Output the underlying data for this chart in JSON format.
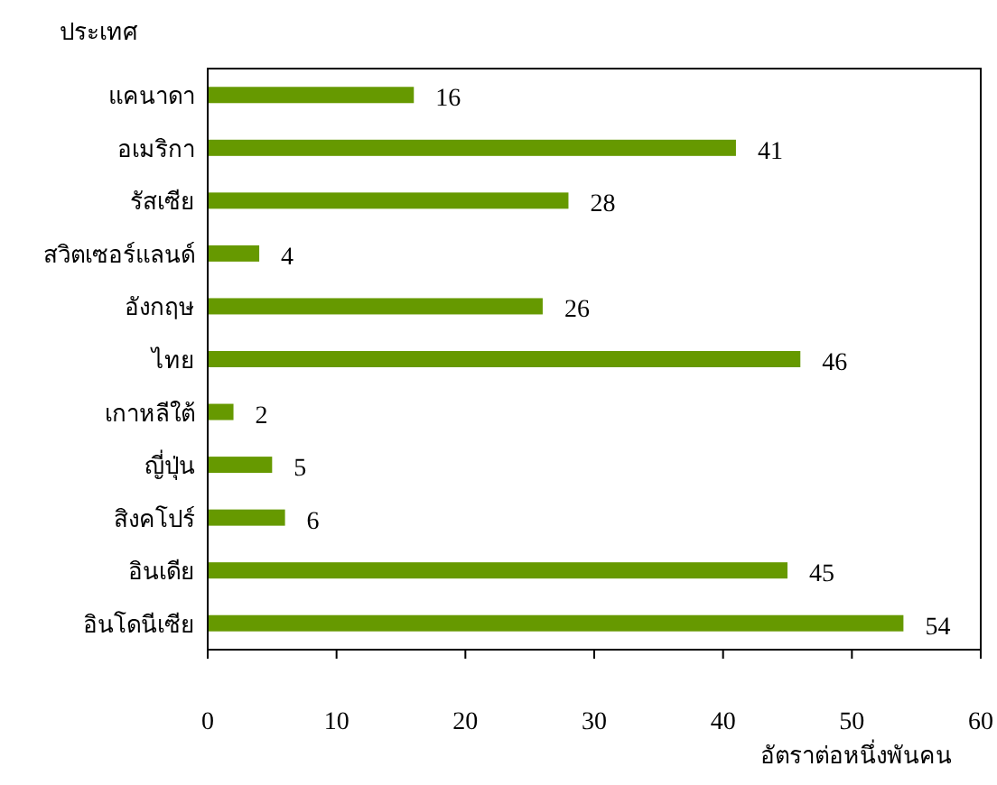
{
  "chart_data": {
    "type": "bar",
    "orientation": "horizontal",
    "ylabel": "ประเทศ",
    "xlabel": "อัตราต่อหนึ่งพันคน",
    "categories": [
      "แคนาดา",
      "อเมริกา",
      "รัสเซีย",
      "สวิตเซอร์แลนด์",
      "อังกฤษ",
      "ไทย",
      "เกาหลีใต้",
      "ญี่ปุ่น",
      "สิงคโปร์",
      "อินเดีย",
      "อินโดนีเซีย"
    ],
    "values": [
      16,
      41,
      28,
      4,
      26,
      46,
      2,
      5,
      6,
      45,
      54
    ],
    "color": "#669900",
    "xlim": [
      0,
      60
    ],
    "xticks": [
      0,
      10,
      20,
      30,
      40,
      50,
      60
    ],
    "data_labels": true,
    "grid": false
  }
}
